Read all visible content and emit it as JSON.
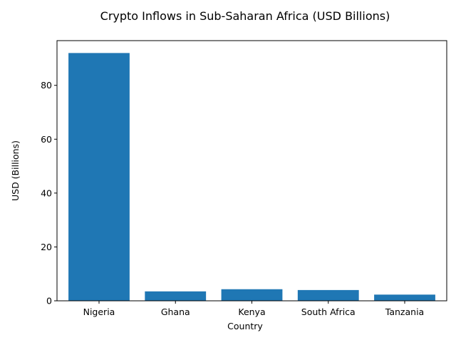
{
  "chart_data": {
    "type": "bar",
    "title": "Crypto Inflows in Sub-Saharan Africa (USD Billions)",
    "xlabel": "Country",
    "ylabel": "USD (Billions)",
    "categories": [
      "Nigeria",
      "Ghana",
      "Kenya",
      "South Africa",
      "Tanzania"
    ],
    "values": [
      92.0,
      3.5,
      4.3,
      4.0,
      2.3
    ],
    "ylim": [
      0,
      96.6
    ],
    "yticks": [
      0,
      20,
      40,
      60,
      80
    ],
    "grid": false,
    "legend": "none",
    "bar_color": "#1f77b4"
  }
}
